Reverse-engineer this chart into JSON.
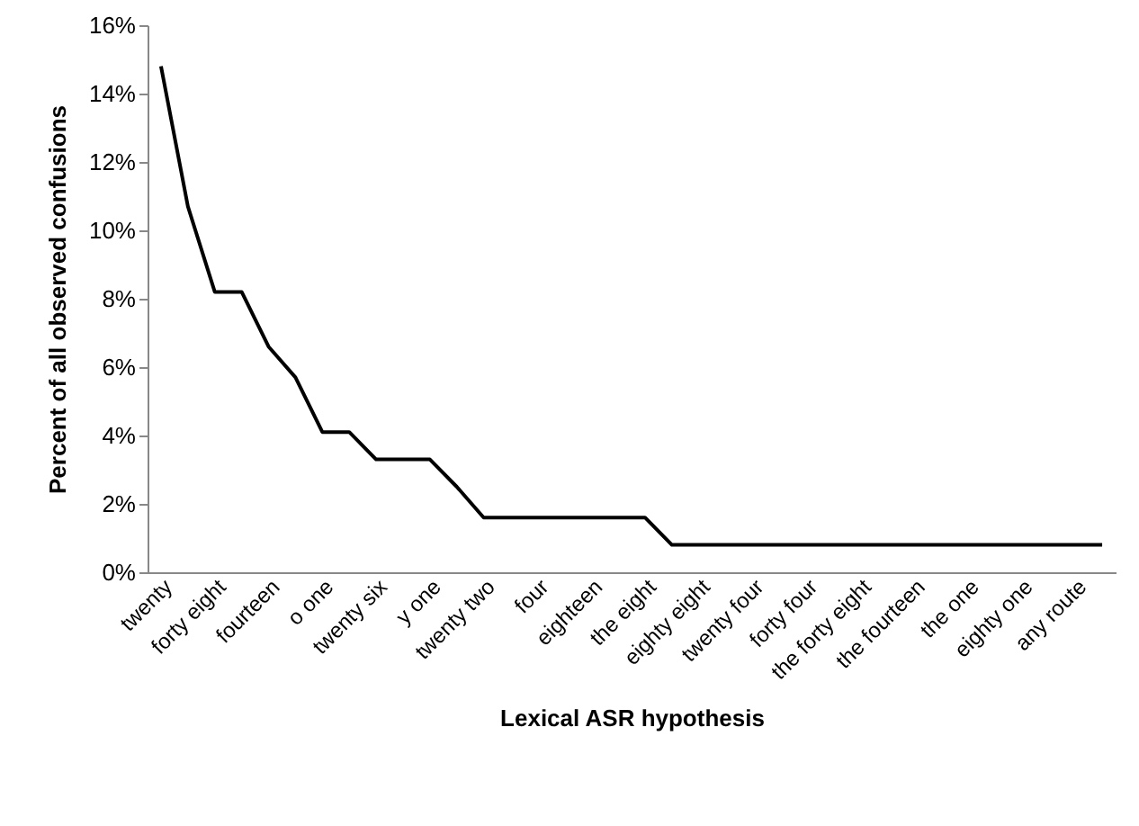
{
  "chart_data": {
    "type": "line",
    "xlabel": "Lexical ASR hypothesis",
    "ylabel": "Percent of all observed confusions",
    "categories": [
      "twenty",
      null,
      "forty eight",
      null,
      "fourteen",
      null,
      "o one",
      null,
      "twenty six",
      null,
      "y one",
      null,
      "twenty two",
      null,
      "four",
      null,
      "eighteen",
      null,
      "the eight",
      null,
      "eighty eight",
      null,
      "twenty four",
      null,
      "forty four",
      null,
      "the forty eight",
      null,
      "the fourteen",
      null,
      "the one",
      null,
      "eighty one",
      null,
      "any route",
      null
    ],
    "series": [
      {
        "color": "#000000",
        "values": [
          14.8,
          10.7,
          8.2,
          8.2,
          6.6,
          5.7,
          4.1,
          4.1,
          3.3,
          3.3,
          3.3,
          2.5,
          1.6,
          1.6,
          1.6,
          1.6,
          1.6,
          1.6,
          1.6,
          0.8,
          0.8,
          0.8,
          0.8,
          0.8,
          0.8,
          0.8,
          0.8,
          0.8,
          0.8,
          0.8,
          0.8,
          0.8,
          0.8,
          0.8,
          0.8,
          0.8
        ]
      }
    ],
    "ylim": [
      0,
      16
    ],
    "yticks": [
      {
        "value": 0,
        "label": "0%"
      },
      {
        "value": 2,
        "label": "2%"
      },
      {
        "value": 4,
        "label": "4%"
      },
      {
        "value": 6,
        "label": "6%"
      },
      {
        "value": 8,
        "label": "8%"
      },
      {
        "value": 10,
        "label": "10%"
      },
      {
        "value": 12,
        "label": "12%"
      },
      {
        "value": 14,
        "label": "14%"
      },
      {
        "value": 16,
        "label": "16%"
      }
    ],
    "grid": false,
    "marker": "none",
    "line_style": "solid"
  }
}
